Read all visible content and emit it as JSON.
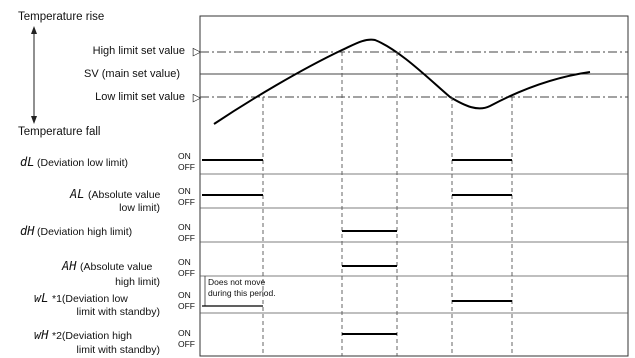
{
  "diagram": {
    "header_rise": "Temperature rise",
    "header_fall": "Temperature fall",
    "levels": {
      "high": "High limit set value",
      "sv": "SV (main set value)",
      "low": "Low limit set value",
      "marker": "▷"
    },
    "state_on": "ON",
    "state_off": "OFF",
    "note_line1": "Does not move",
    "note_line2": "during this period.",
    "alarms": [
      {
        "code": "dL",
        "text1": "(Deviation low limit)",
        "text2": ""
      },
      {
        "code": "AL",
        "text1": "(Absolute value",
        "text2": "low limit)"
      },
      {
        "code": "dH",
        "text1": "(Deviation high limit)",
        "text2": ""
      },
      {
        "code": "AH",
        "text1": "(Absolute value",
        "text2": "high limit)"
      },
      {
        "code": "wL",
        "text1": "*1(Deviation low",
        "text2": "limit with standby)"
      },
      {
        "code": "wH",
        "text1": "*2(Deviation high",
        "text2": "limit with standby)"
      }
    ],
    "colors": {
      "ink": "#111111",
      "grid": "#333333",
      "background": "#ffffff"
    }
  }
}
